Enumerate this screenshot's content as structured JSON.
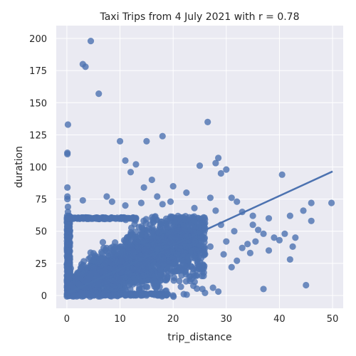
{
  "chart_data": {
    "type": "scatter",
    "title": "Taxi Trips from 4 July 2021 with r = 0.78",
    "xlabel": "trip_distance",
    "ylabel": "duration",
    "xlim": [
      -2,
      52
    ],
    "ylim": [
      -10,
      210
    ],
    "xticks": [
      0,
      10,
      20,
      30,
      40,
      50
    ],
    "yticks": [
      0,
      25,
      50,
      75,
      100,
      125,
      150,
      175,
      200
    ],
    "grid": true,
    "colors": {
      "background": "#eaeaf2",
      "grid": "#ffffff",
      "marker": "#4c72b0",
      "line": "#4c72b0"
    },
    "regression": {
      "slope": 1.9,
      "intercept": 1.5,
      "x_range": [
        0,
        50
      ],
      "correlation": 0.78
    },
    "series": [
      {
        "points": [
          [
            4.5,
            198
          ],
          [
            3,
            180
          ],
          [
            3.5,
            178
          ],
          [
            6,
            157
          ],
          [
            0.2,
            133
          ],
          [
            0.1,
            111
          ],
          [
            0.1,
            110
          ],
          [
            18,
            124
          ],
          [
            10,
            120
          ],
          [
            15,
            120
          ],
          [
            26.5,
            135
          ],
          [
            28.5,
            107
          ],
          [
            28,
            103
          ],
          [
            25,
            101
          ],
          [
            30,
            98
          ],
          [
            29,
            95
          ],
          [
            40.5,
            94
          ],
          [
            11,
            105
          ],
          [
            13,
            102
          ],
          [
            12,
            96
          ],
          [
            16,
            90
          ],
          [
            0.1,
            84
          ],
          [
            0.1,
            77
          ],
          [
            0.1,
            75
          ],
          [
            3,
            74
          ],
          [
            7.5,
            77
          ],
          [
            8.5,
            73
          ],
          [
            17,
            77
          ],
          [
            19.5,
            73
          ],
          [
            22.5,
            80
          ],
          [
            27,
            76
          ],
          [
            31,
            76
          ],
          [
            32,
            73
          ],
          [
            20,
            85
          ],
          [
            14.5,
            84
          ],
          [
            0.2,
            69
          ],
          [
            0.2,
            65
          ],
          [
            1,
            60
          ],
          [
            2,
            60
          ],
          [
            3,
            60
          ],
          [
            4,
            60
          ],
          [
            5,
            60
          ],
          [
            11,
            70
          ],
          [
            14,
            72
          ],
          [
            18,
            71
          ],
          [
            24,
            68
          ],
          [
            28,
            66
          ],
          [
            33,
            65
          ],
          [
            35,
            62
          ],
          [
            38,
            60
          ],
          [
            42,
            62
          ],
          [
            44.5,
            66
          ],
          [
            46,
            72
          ],
          [
            49.8,
            72
          ],
          [
            46,
            58
          ],
          [
            35,
            55
          ],
          [
            36,
            51
          ],
          [
            37,
            48
          ],
          [
            39,
            45
          ],
          [
            40,
            43
          ],
          [
            41,
            48
          ],
          [
            43,
            45
          ],
          [
            42.5,
            38
          ],
          [
            42,
            28
          ],
          [
            38,
            35
          ],
          [
            34,
            40
          ],
          [
            34.5,
            33
          ],
          [
            33,
            37
          ],
          [
            35.5,
            42
          ],
          [
            32,
            27
          ],
          [
            31,
            22
          ],
          [
            29.5,
            32
          ],
          [
            45,
            8
          ],
          [
            37,
            5
          ],
          [
            27.5,
            6
          ],
          [
            25.5,
            5
          ],
          [
            26,
            2
          ],
          [
            28.5,
            3
          ],
          [
            30,
            42
          ],
          [
            31.5,
            50
          ],
          [
            29,
            55
          ],
          [
            27,
            38
          ],
          [
            0.1,
            0
          ],
          [
            0.5,
            0
          ],
          [
            1,
            1
          ],
          [
            2,
            0
          ],
          [
            3,
            0
          ],
          [
            4,
            1
          ],
          [
            5,
            0
          ],
          [
            6,
            0
          ],
          [
            7,
            1
          ],
          [
            8,
            0
          ],
          [
            9,
            0
          ],
          [
            10,
            1
          ],
          [
            11,
            0
          ],
          [
            12,
            0
          ],
          [
            13,
            1
          ],
          [
            14,
            0
          ],
          [
            15,
            0
          ],
          [
            16,
            1
          ],
          [
            17,
            7
          ],
          [
            18,
            0
          ],
          [
            19,
            1
          ],
          [
            20,
            0
          ],
          [
            22,
            1
          ],
          [
            16.5,
            7
          ],
          [
            0.1,
            10
          ],
          [
            0.1,
            20
          ],
          [
            0.1,
            30
          ],
          [
            0.1,
            40
          ],
          [
            0.1,
            50
          ],
          [
            0.1,
            55
          ],
          [
            0.1,
            45
          ],
          [
            0.3,
            35
          ],
          [
            0.3,
            25
          ],
          [
            0.3,
            15
          ],
          [
            0.3,
            5
          ],
          [
            0.3,
            60
          ],
          [
            0.1,
            0
          ],
          [
            0.2,
            2
          ],
          [
            0.5,
            3
          ],
          [
            0.8,
            4
          ],
          [
            1.2,
            5
          ],
          [
            0.7,
            8
          ]
        ]
      }
    ]
  }
}
